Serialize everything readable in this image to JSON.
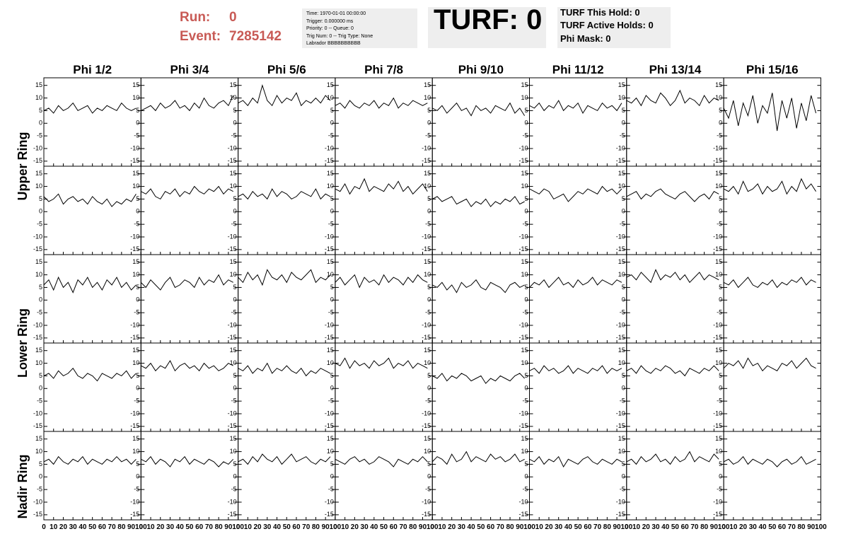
{
  "header": {
    "run_label": "Run:",
    "run": "0",
    "event_label": "Event:",
    "event": "7285142",
    "info_lines": [
      "Time: 1970-01-01 00:00:00",
      "Trigger: 0.000000 ms",
      "Priority: 0 -- Queue: 0",
      "Trig Num: 0 -- Trig Type: None",
      "Labrador BBBBBBBBBB"
    ],
    "turf": "TURF: 0",
    "turf_lines": [
      "TURF This Hold: 0",
      "TURF Active Holds: 0",
      "Phi Mask: 0"
    ]
  },
  "chart_data": {
    "type": "line",
    "color": "#000000",
    "column_titles": [
      "Phi 1/2",
      "Phi 3/4",
      "Phi 5/6",
      "Phi 7/8",
      "Phi 9/10",
      "Phi 11/12",
      "Phi 13/14",
      "Phi 15/16"
    ],
    "row_titles": [
      "Upper Ring",
      "Lower Ring",
      "Nadir Ring"
    ],
    "xlim": [
      0,
      100
    ],
    "xticks": [
      0,
      10,
      20,
      30,
      40,
      50,
      60,
      70,
      80,
      90,
      100
    ],
    "ylim": [
      -17,
      18
    ],
    "yticks": [
      -15,
      -10,
      -5,
      0,
      5,
      10,
      15
    ],
    "x": [
      0,
      5,
      10,
      15,
      20,
      25,
      30,
      35,
      40,
      45,
      50,
      55,
      60,
      65,
      70,
      75,
      80,
      85,
      90,
      95
    ],
    "panels": [
      [
        [
          5,
          6,
          4,
          7,
          5,
          6,
          8,
          5,
          6,
          7,
          4,
          6,
          5,
          7,
          6,
          5,
          8,
          6,
          5,
          6
        ],
        [
          5,
          6,
          7,
          5,
          8,
          6,
          7,
          9,
          6,
          7,
          5,
          8,
          6,
          10,
          7,
          6,
          8,
          9,
          7,
          11
        ],
        [
          8,
          9,
          7,
          10,
          8,
          15,
          9,
          7,
          11,
          8,
          10,
          9,
          12,
          7,
          9,
          8,
          10,
          8,
          11,
          9
        ],
        [
          7,
          8,
          6,
          9,
          7,
          6,
          8,
          7,
          9,
          6,
          8,
          7,
          10,
          6,
          8,
          7,
          9,
          8,
          7,
          8
        ],
        [
          6,
          5,
          7,
          4,
          6,
          8,
          5,
          6,
          3,
          7,
          5,
          6,
          4,
          7,
          6,
          5,
          8,
          4,
          6,
          3
        ],
        [
          7,
          6,
          8,
          5,
          7,
          6,
          9,
          5,
          7,
          6,
          8,
          4,
          7,
          6,
          5,
          8,
          6,
          7,
          5,
          8
        ],
        [
          9,
          8,
          10,
          7,
          11,
          9,
          8,
          12,
          10,
          7,
          9,
          13,
          8,
          10,
          9,
          7,
          11,
          8,
          10,
          9
        ],
        [
          6,
          2,
          9,
          -1,
          8,
          3,
          11,
          0,
          7,
          4,
          12,
          -3,
          9,
          2,
          10,
          -2,
          8,
          1,
          11,
          4
        ]
      ],
      [
        [
          6,
          4,
          5,
          7,
          3,
          5,
          6,
          4,
          5,
          3,
          6,
          4,
          3,
          5,
          2,
          4,
          3,
          5,
          4,
          7
        ],
        [
          8,
          7,
          9,
          6,
          5,
          8,
          7,
          9,
          6,
          8,
          7,
          10,
          8,
          7,
          9,
          8,
          10,
          7,
          9,
          8
        ],
        [
          6,
          7,
          5,
          8,
          6,
          7,
          5,
          9,
          6,
          8,
          7,
          5,
          6,
          8,
          7,
          6,
          9,
          5,
          7,
          6
        ],
        [
          9,
          8,
          11,
          7,
          10,
          9,
          13,
          8,
          10,
          9,
          8,
          11,
          9,
          12,
          8,
          10,
          7,
          9,
          11,
          8
        ],
        [
          5,
          6,
          4,
          5,
          6,
          3,
          4,
          5,
          2,
          4,
          3,
          5,
          2,
          4,
          3,
          5,
          4,
          6,
          3,
          4
        ],
        [
          9,
          8,
          7,
          9,
          8,
          5,
          6,
          7,
          4,
          6,
          8,
          7,
          9,
          8,
          7,
          10,
          8,
          9,
          7,
          9
        ],
        [
          6,
          7,
          8,
          5,
          7,
          6,
          8,
          9,
          7,
          6,
          5,
          7,
          8,
          6,
          4,
          6,
          7,
          5,
          8,
          7
        ],
        [
          9,
          8,
          10,
          7,
          12,
          8,
          9,
          11,
          7,
          10,
          8,
          9,
          12,
          7,
          10,
          8,
          13,
          9,
          11,
          8
        ]
      ],
      [
        [
          6,
          8,
          4,
          9,
          5,
          7,
          3,
          8,
          6,
          9,
          5,
          7,
          4,
          8,
          6,
          9,
          5,
          7,
          4,
          6
        ],
        [
          7,
          5,
          8,
          6,
          4,
          7,
          9,
          5,
          6,
          8,
          7,
          5,
          9,
          6,
          8,
          7,
          10,
          6,
          8,
          7
        ],
        [
          9,
          7,
          11,
          8,
          10,
          6,
          12,
          9,
          8,
          10,
          7,
          11,
          9,
          8,
          10,
          12,
          7,
          9,
          8,
          10
        ],
        [
          7,
          9,
          6,
          8,
          10,
          5,
          9,
          7,
          8,
          6,
          10,
          7,
          9,
          8,
          6,
          9,
          7,
          10,
          8,
          7
        ],
        [
          6,
          5,
          7,
          4,
          6,
          3,
          7,
          5,
          6,
          8,
          5,
          4,
          7,
          6,
          5,
          3,
          6,
          7,
          5,
          6
        ],
        [
          5,
          7,
          6,
          8,
          5,
          7,
          9,
          6,
          7,
          5,
          8,
          6,
          7,
          9,
          6,
          8,
          7,
          6,
          8,
          7
        ],
        [
          9,
          10,
          8,
          11,
          9,
          7,
          12,
          8,
          10,
          9,
          11,
          8,
          10,
          7,
          9,
          11,
          8,
          10,
          9,
          8
        ],
        [
          7,
          6,
          8,
          5,
          7,
          9,
          6,
          5,
          7,
          6,
          8,
          5,
          7,
          6,
          8,
          7,
          9,
          6,
          8,
          7
        ]
      ],
      [
        [
          5,
          6,
          4,
          7,
          5,
          6,
          8,
          5,
          4,
          6,
          5,
          3,
          6,
          5,
          4,
          6,
          5,
          7,
          4,
          6
        ],
        [
          9,
          8,
          10,
          7,
          9,
          8,
          11,
          7,
          9,
          10,
          8,
          9,
          7,
          10,
          8,
          9,
          7,
          8,
          10,
          9
        ],
        [
          8,
          7,
          9,
          6,
          8,
          7,
          10,
          6,
          8,
          7,
          9,
          7,
          6,
          8,
          5,
          7,
          6,
          8,
          7,
          6
        ],
        [
          10,
          9,
          12,
          8,
          11,
          9,
          10,
          8,
          11,
          9,
          10,
          12,
          8,
          10,
          9,
          11,
          8,
          10,
          9,
          8
        ],
        [
          5,
          4,
          6,
          3,
          5,
          4,
          6,
          5,
          3,
          4,
          5,
          2,
          4,
          3,
          5,
          4,
          3,
          5,
          6,
          4
        ],
        [
          7,
          8,
          6,
          9,
          7,
          8,
          6,
          7,
          9,
          6,
          8,
          7,
          6,
          8,
          7,
          9,
          6,
          8,
          7,
          8
        ],
        [
          7,
          8,
          6,
          9,
          7,
          6,
          8,
          7,
          9,
          8,
          6,
          7,
          5,
          8,
          7,
          6,
          8,
          7,
          9,
          7
        ],
        [
          8,
          10,
          9,
          11,
          8,
          12,
          9,
          10,
          7,
          9,
          8,
          7,
          10,
          9,
          11,
          8,
          10,
          12,
          9,
          8
        ]
      ],
      [
        [
          6,
          7,
          5,
          8,
          6,
          5,
          7,
          6,
          8,
          5,
          7,
          6,
          5,
          7,
          6,
          8,
          6,
          7,
          5,
          7
        ],
        [
          7,
          6,
          8,
          5,
          7,
          6,
          4,
          7,
          6,
          8,
          5,
          7,
          6,
          5,
          7,
          6,
          4,
          6,
          5,
          7
        ],
        [
          6,
          7,
          5,
          8,
          6,
          9,
          7,
          6,
          8,
          5,
          7,
          9,
          6,
          7,
          8,
          6,
          5,
          7,
          6,
          8
        ],
        [
          7,
          6,
          5,
          7,
          8,
          6,
          7,
          5,
          6,
          8,
          7,
          6,
          4,
          7,
          6,
          5,
          7,
          6,
          8,
          6
        ],
        [
          6,
          8,
          7,
          5,
          9,
          6,
          7,
          10,
          6,
          8,
          7,
          6,
          9,
          7,
          8,
          6,
          7,
          9,
          6,
          7
        ],
        [
          7,
          6,
          8,
          5,
          7,
          6,
          8,
          4,
          7,
          6,
          5,
          7,
          8,
          6,
          5,
          7,
          6,
          5,
          7,
          6
        ],
        [
          6,
          7,
          5,
          8,
          6,
          7,
          9,
          6,
          7,
          5,
          8,
          6,
          7,
          10,
          6,
          8,
          7,
          6,
          9,
          7
        ],
        [
          6,
          7,
          5,
          6,
          8,
          5,
          7,
          6,
          5,
          7,
          6,
          4,
          6,
          7,
          5,
          6,
          8,
          5,
          6,
          7
        ]
      ]
    ]
  }
}
